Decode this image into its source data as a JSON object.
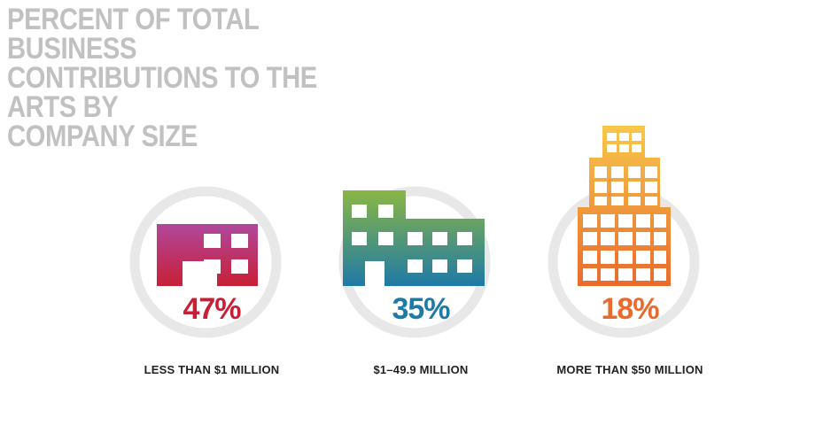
{
  "title": "PERCENT OF TOTAL BUSINESS\nCONTRIBUTIONS TO THE ARTS BY\nCOMPANY SIZE",
  "colors": {
    "title": "#c1c1c1",
    "ring": "#e8e8e8",
    "small_top": "#b0489c",
    "small_bottom": "#c81f36",
    "medium_top": "#8bb645",
    "medium_bottom": "#1e7aa6",
    "large_top": "#f7c84b",
    "large_bottom": "#ea6a2d",
    "window": "#ffffff"
  },
  "chart_data": {
    "type": "table",
    "title": "PERCENT OF TOTAL BUSINESS CONTRIBUTIONS TO THE ARTS BY COMPANY SIZE",
    "categories": [
      "LESS THAN $1 MILLION",
      "$1–49.9 MILLION",
      "MORE THAN $50 MILLION"
    ],
    "values": [
      47,
      35,
      18
    ],
    "value_labels": [
      "47%",
      "35%",
      "18%"
    ],
    "unit": "%",
    "icons": [
      "small-building-icon",
      "medium-building-icon",
      "tall-building-icon"
    ],
    "value_colors": [
      "#c81f36",
      "#1e7aa6",
      "#ea6a2d"
    ]
  }
}
